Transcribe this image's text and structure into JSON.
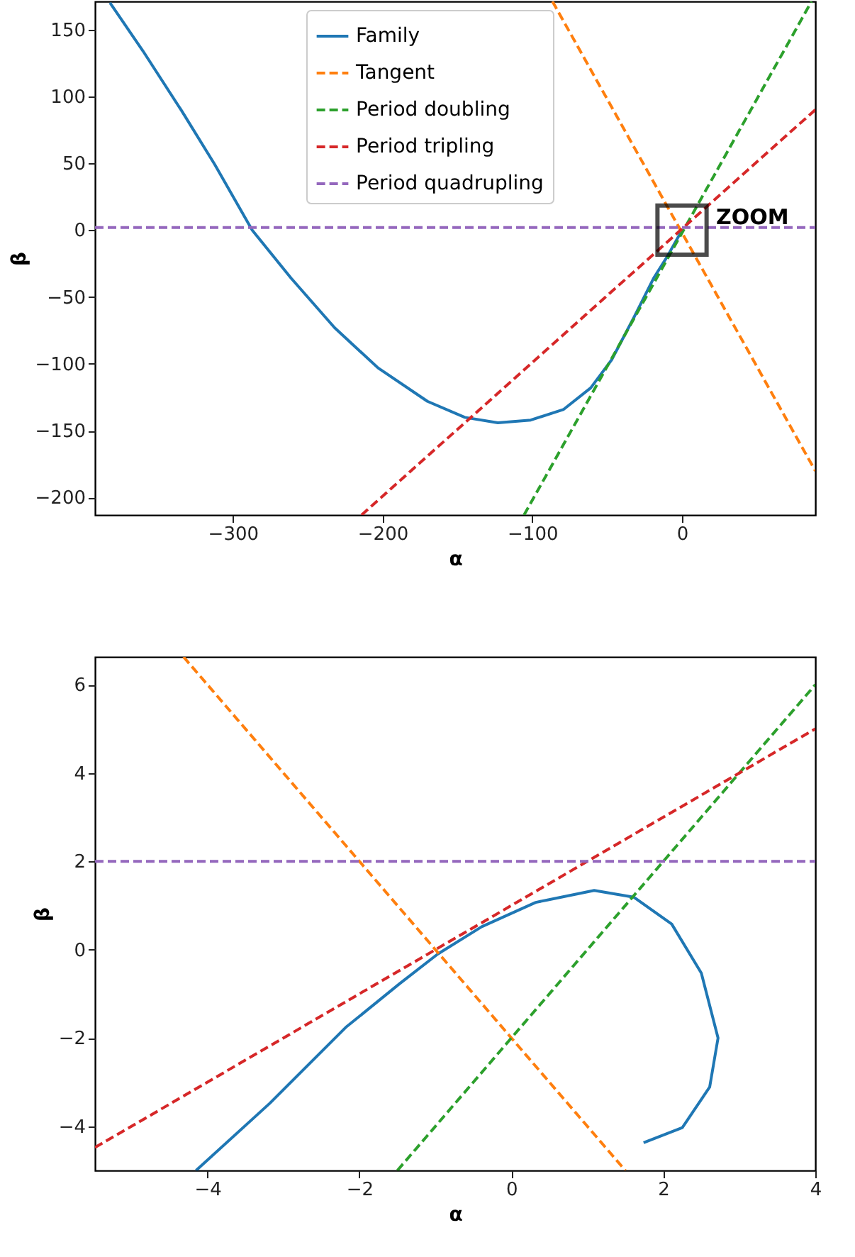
{
  "chart_data": [
    {
      "type": "line",
      "xlabel": "α",
      "ylabel": "β",
      "xlim": [
        -392,
        89
      ],
      "ylim": [
        -213,
        171
      ],
      "xticks": [
        -300,
        -200,
        -100,
        0
      ],
      "yticks": [
        -200,
        -150,
        -100,
        -50,
        0,
        50,
        100,
        150
      ],
      "grid": false,
      "legend": "top",
      "annotations": [
        {
          "text": "ZOOM",
          "x": 0,
          "y": 0
        }
      ],
      "series": [
        {
          "name": "Family",
          "color": "#1f77b4",
          "line_style": "solid",
          "x": [
            -382,
            -360,
            -334,
            -312,
            -287,
            -261,
            -232,
            -203,
            -170,
            -145,
            -123,
            -101,
            -79,
            -61,
            -47,
            -32,
            -19,
            -10,
            0
          ],
          "values": [
            170,
            134,
            89,
            49,
            0,
            -36,
            -73,
            -103,
            -128,
            -140,
            -144,
            -142,
            -134,
            -118,
            -97,
            -65,
            -36,
            -20,
            0
          ]
        },
        {
          "name": "Tangent",
          "color": "#ff7f0e",
          "line_style": "dashed",
          "x": [
            -86.5,
            89
          ],
          "values": [
            171,
            -180
          ]
        },
        {
          "name": "Period doubling",
          "color": "#2ca02c",
          "line_style": "dashed",
          "x": [
            -105.5,
            86.5
          ],
          "values": [
            -213,
            171
          ]
        },
        {
          "name": "Period tripling",
          "color": "#d62728",
          "line_style": "dashed",
          "x": [
            -214,
            89
          ],
          "values": [
            -213,
            90
          ]
        },
        {
          "name": "Period quadrupling",
          "color": "#9467bd",
          "line_style": "dashed",
          "x": [
            -392,
            89
          ],
          "values": [
            2,
            2
          ]
        }
      ]
    },
    {
      "type": "line",
      "xlabel": "α",
      "ylabel": "β",
      "xlim": [
        -5.48,
        4
      ],
      "ylim": [
        -5.0,
        6.63
      ],
      "xticks": [
        -4,
        -2,
        0,
        2,
        4
      ],
      "yticks": [
        -4,
        -2,
        0,
        2,
        4,
        6
      ],
      "grid": false,
      "legend": "top left",
      "series": [
        {
          "name": "Family",
          "color": "#1f77b4",
          "line_style": "solid",
          "x": [
            -4.15,
            -3.18,
            -2.18,
            -1.47,
            -0.97,
            -0.39,
            0.32,
            1.09,
            1.61,
            2.11,
            2.5,
            2.72,
            2.61,
            2.25,
            1.74
          ],
          "values": [
            -5.0,
            -3.48,
            -1.76,
            -0.77,
            -0.1,
            0.52,
            1.07,
            1.34,
            1.19,
            0.58,
            -0.53,
            -2.0,
            -3.11,
            -4.03,
            -4.37
          ]
        },
        {
          "name": "Tangent",
          "color": "#ff7f0e",
          "line_style": "dashed",
          "x": [
            -4.315,
            1.5
          ],
          "values": [
            6.63,
            -5.0
          ]
        },
        {
          "name": "Period doubling",
          "color": "#2ca02c",
          "line_style": "dashed",
          "x": [
            -1.5,
            4
          ],
          "values": [
            -5.0,
            6
          ]
        },
        {
          "name": "Period tripling",
          "color": "#d62728",
          "line_style": "dashed",
          "x": [
            -5.48,
            4
          ],
          "values": [
            -4.48,
            5
          ]
        },
        {
          "name": "Period quadrupling",
          "color": "#9467bd",
          "line_style": "dashed",
          "x": [
            -5.48,
            4
          ],
          "values": [
            2,
            2
          ]
        }
      ]
    }
  ]
}
